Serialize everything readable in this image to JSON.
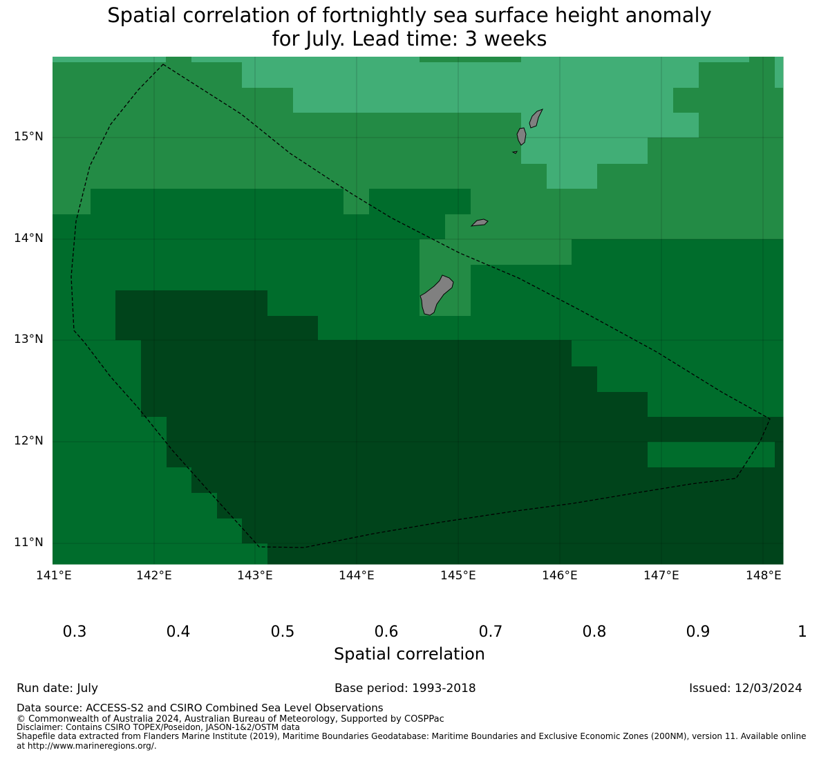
{
  "title_line1": "Spatial correlation of fortnightly sea surface height anomaly",
  "title_line2": "for July. Lead time: 3 weeks",
  "map": {
    "lon_range": [
      141,
      148.2
    ],
    "lat_range": [
      10.8,
      15.8
    ],
    "lon_ticks": [
      "141°E",
      "142°E",
      "143°E",
      "144°E",
      "145°E",
      "146°E",
      "147°E",
      "148°E"
    ],
    "lat_ticks": [
      "15°N",
      "14°N",
      "13°N",
      "12°N",
      "11°N"
    ],
    "land_color": "#808080",
    "boundary_style": "dashed black"
  },
  "colorbar": {
    "ticks": [
      "0.3",
      "0.4",
      "0.5",
      "0.6",
      "0.7",
      "0.8",
      "0.9",
      "1"
    ],
    "label": "Spatial correlation",
    "bins": [
      {
        "range": "<0.3",
        "color": "#e5f5f9"
      },
      {
        "range": "0.3-0.4",
        "color": "#ccece6"
      },
      {
        "range": "0.4-0.5",
        "color": "#99d8c9"
      },
      {
        "range": "0.5-0.6",
        "color": "#66c2a4"
      },
      {
        "range": "0.6-0.7",
        "color": "#41ae76"
      },
      {
        "range": "0.7-0.8",
        "color": "#238b45"
      },
      {
        "range": "0.8-0.9",
        "color": "#006d2c"
      },
      {
        "range": "0.9-1",
        "color": "#00441b"
      }
    ]
  },
  "footer": {
    "run_date": "Run date: July",
    "base_period": "Base period: 1993-2018",
    "issued": "Issued: 12/03/2024",
    "data_source": "Data source: ACCESS-S2 and CSIRO Combined Sea Level Observations",
    "copyright": "© Commonwealth of Australia 2024, Australian Bureau of Meteorology, Supported by COSPPac",
    "disclaimer": "Disclaimer: Contains CSIRO TOPEX/Poseidon, JASON-1&2/OSTM data",
    "shapefile_1": "Shapefile data extracted from Flanders Marine Institute (2019), Maritime Boundaries Geodatabase: Maritime Boundaries and Exclusive Economic Zones (200NM), version 11. Available online",
    "shapefile_2": "at http://www.marineregions.org/."
  }
}
